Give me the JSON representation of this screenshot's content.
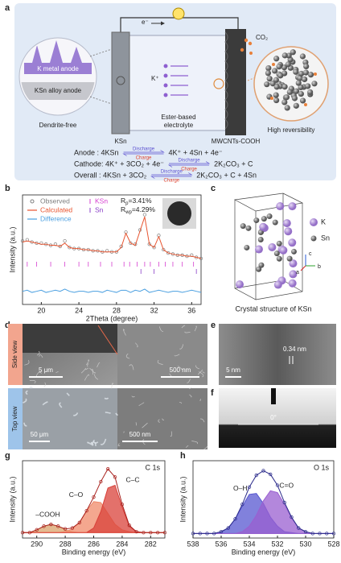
{
  "figure": {
    "panel_labels": [
      "a",
      "b",
      "c",
      "d",
      "e",
      "f",
      "g",
      "h"
    ],
    "scheme": {
      "electron": "e⁻",
      "co2": "CO₂",
      "k_anode": "K metal anode",
      "ksn_anode": "KSn alloy anode",
      "dendrite": "Dendrite-free",
      "kplus": "K⁺",
      "ksn": "KSn",
      "electrolyte": [
        "Ester-based",
        "electrolyte"
      ],
      "cathode": "MWCNTs-COOH",
      "reversibility": "High reversibility",
      "equations": [
        {
          "left": "Anode : 4KSn",
          "forward": "Discharge",
          "backward": "Charge",
          "right": "4K⁺ + 4Sn + 4e⁻"
        },
        {
          "left": "Cathode: 4K⁺ + 3CO₂ + 4e⁻",
          "forward": "Discharge",
          "backward": "Charge",
          "right": "2K₂CO₃ + C"
        },
        {
          "left": "Overall : 4KSn + 3CO₂",
          "forward": "Discharge",
          "backward": "Charge",
          "right": "2K₂CO₃ + C + 4Sn"
        }
      ]
    },
    "structure": {
      "legend": [
        "K",
        "Sn"
      ],
      "axes": [
        "c",
        "a",
        "b"
      ],
      "caption": "Crystal structure of KSn"
    },
    "micrographs": {
      "side": "Side view",
      "top": "Top view",
      "scale": [
        "5 μm",
        "500 nm",
        "50 μm",
        "500 nm",
        "5 nm"
      ],
      "lattice": "0.34 nm",
      "angle": "0°"
    }
  },
  "chart_data": [
    {
      "type": "xrd",
      "xlabel": "2Theta (degree)",
      "ylabel": "Intensity (a.u.)",
      "x": [
        18,
        18.5,
        19,
        19.5,
        20,
        20.5,
        21,
        21.5,
        22,
        22.5,
        23,
        23.5,
        24,
        24.5,
        25,
        25.5,
        26,
        26.5,
        27,
        27.5,
        28,
        28.5,
        29,
        29.5,
        30,
        30.5,
        31,
        31.5,
        32,
        32.5,
        33,
        33.5,
        34,
        34.5,
        35,
        35.5,
        36,
        36.5,
        37
      ],
      "series": [
        {
          "name": "Observed",
          "color": "#7f7f7f",
          "values": [
            5.8,
            5.9,
            5.7,
            5.6,
            5.6,
            5.5,
            5.4,
            5.5,
            5.3,
            5.8,
            5.2,
            5.1,
            5.1,
            5.0,
            5.0,
            4.9,
            4.9,
            4.8,
            4.9,
            4.8,
            4.8,
            5.3,
            6.6,
            5.6,
            5.5,
            6.8,
            8.2,
            5.5,
            5.2,
            6.3,
            5.0,
            4.7,
            4.6,
            4.5,
            4.5,
            4.4,
            4.5,
            4.3,
            4.2
          ]
        },
        {
          "name": "Calculated",
          "color": "#e8542f",
          "values": [
            5.7,
            5.8,
            5.7,
            5.6,
            5.5,
            5.5,
            5.4,
            5.4,
            5.3,
            5.6,
            5.2,
            5.1,
            5.1,
            5.0,
            5.0,
            4.9,
            4.9,
            4.8,
            4.8,
            4.8,
            4.8,
            5.2,
            6.5,
            5.6,
            5.4,
            6.7,
            8.0,
            5.5,
            5.2,
            6.2,
            5.0,
            4.7,
            4.6,
            4.5,
            4.5,
            4.4,
            4.4,
            4.3,
            4.2
          ]
        },
        {
          "name": "Difference",
          "color": "#4a9fe0",
          "values": [
            1.2,
            1.3,
            1.1,
            1.2,
            1.3,
            1.1,
            1.2,
            1.3,
            1.2,
            1.4,
            1.2,
            1.1,
            1.2,
            1.2,
            1.1,
            1.2,
            1.2,
            1.1,
            1.3,
            1.2,
            1.1,
            1.3,
            1.3,
            1.1,
            1.3,
            1.2,
            1.4,
            1.1,
            1.2,
            1.3,
            1.2,
            1.1,
            1.2,
            1.2,
            1.1,
            1.2,
            1.3,
            1.2,
            1.1
          ]
        }
      ],
      "reflections": [
        {
          "name": "KSn",
          "color": "#d63fd0",
          "x": [
            18.5,
            19.5,
            21,
            22.5,
            24,
            25,
            26.3,
            27.5,
            28.8,
            29.4,
            30.2,
            31,
            31.6,
            32.5,
            33.2,
            34,
            35,
            36.2
          ]
        },
        {
          "name": "Sn",
          "color": "#8a3fc8",
          "x": [
            30.6,
            32,
            36.5
          ]
        }
      ],
      "annotations": [
        {
          "symbol": "R",
          "sub": "p",
          "text": "=3.41%"
        },
        {
          "symbol": "R",
          "sub": "wp",
          "text": "=4.29%"
        }
      ],
      "xlim": [
        18,
        37
      ],
      "xticks": [
        20,
        24,
        28,
        32,
        36
      ],
      "ylim": [
        0,
        10
      ]
    },
    {
      "type": "xps",
      "title": "C 1s",
      "xlabel": "Binding energy (eV)",
      "ylabel": "Intensity (a.u.)",
      "x": [
        291,
        290.5,
        290,
        289.5,
        289,
        288.5,
        288,
        287.5,
        287,
        286.5,
        286,
        285.5,
        285,
        284.5,
        284,
        283.5,
        283,
        282.5,
        282,
        281.5,
        281
      ],
      "series": [
        {
          "name": "–COOH",
          "color": "#d9a36b",
          "values": [
            0.6,
            0.6,
            0.9,
            1.3,
            1.5,
            1.3,
            0.9,
            0.7,
            0.6,
            0.6,
            0.6,
            0.6,
            0.6,
            0.6,
            0.6,
            0.6,
            0.6,
            0.6,
            0.6,
            0.6,
            0.6
          ]
        },
        {
          "name": "C–O",
          "color": "#f08a6a",
          "values": [
            0.6,
            0.6,
            0.6,
            0.6,
            0.6,
            0.6,
            0.7,
            1.0,
            1.7,
            3.0,
            4.0,
            3.9,
            2.7,
            1.5,
            0.9,
            0.7,
            0.6,
            0.6,
            0.6,
            0.6,
            0.6
          ]
        },
        {
          "name": "C–C",
          "color": "#d9413a",
          "values": [
            0.6,
            0.6,
            0.6,
            0.6,
            0.6,
            0.6,
            0.6,
            0.6,
            0.6,
            0.6,
            1.1,
            2.9,
            5.5,
            5.8,
            3.4,
            1.3,
            0.7,
            0.6,
            0.6,
            0.6,
            0.6
          ]
        }
      ],
      "envelope": {
        "color": "#a8201c",
        "values": [
          0.6,
          0.6,
          0.9,
          1.3,
          1.5,
          1.3,
          1.0,
          1.1,
          1.7,
          3.0,
          4.5,
          6.2,
          7.6,
          6.7,
          3.7,
          1.4,
          0.7,
          0.6,
          0.6,
          0.6,
          0.6
        ]
      },
      "xlim": [
        291,
        281
      ],
      "xticks": [
        290,
        288,
        286,
        284,
        282
      ],
      "ylim": [
        0,
        8.5
      ]
    },
    {
      "type": "xps",
      "title": "O 1s",
      "xlabel": "Binding energy (eV)",
      "ylabel": "Intensity (a.u.)",
      "x": [
        538,
        537.5,
        537,
        536.5,
        536,
        535.5,
        535,
        534.5,
        534,
        533.5,
        533,
        532.5,
        532,
        531.5,
        531,
        530.5,
        530,
        529.5,
        529,
        528.5,
        528
      ],
      "series": [
        {
          "name": "O–H",
          "color": "#5757d0",
          "values": [
            0.5,
            0.5,
            0.5,
            0.5,
            0.7,
            1.1,
            2.1,
            3.5,
            4.8,
            4.9,
            3.8,
            2.3,
            1.3,
            0.7,
            0.6,
            0.5,
            0.5,
            0.5,
            0.5,
            0.5,
            0.5
          ]
        },
        {
          "name": "C=O",
          "color": "#9a5fd0",
          "values": [
            0.5,
            0.5,
            0.5,
            0.5,
            0.5,
            0.5,
            0.5,
            0.7,
            1.3,
            2.5,
            4.1,
            5.2,
            5.0,
            3.7,
            2.2,
            1.1,
            0.7,
            0.5,
            0.5,
            0.5,
            0.5
          ]
        }
      ],
      "envelope": {
        "color": "#2a2a8a",
        "values": [
          0.5,
          0.5,
          0.5,
          0.5,
          0.7,
          1.1,
          2.1,
          3.7,
          5.6,
          6.9,
          7.4,
          7.0,
          5.8,
          3.9,
          2.3,
          1.1,
          0.7,
          0.5,
          0.5,
          0.5,
          0.5
        ]
      },
      "xlim": [
        538,
        528
      ],
      "xticks": [
        538,
        536,
        534,
        532,
        530,
        528
      ],
      "ylim": [
        0,
        8.5
      ]
    }
  ]
}
